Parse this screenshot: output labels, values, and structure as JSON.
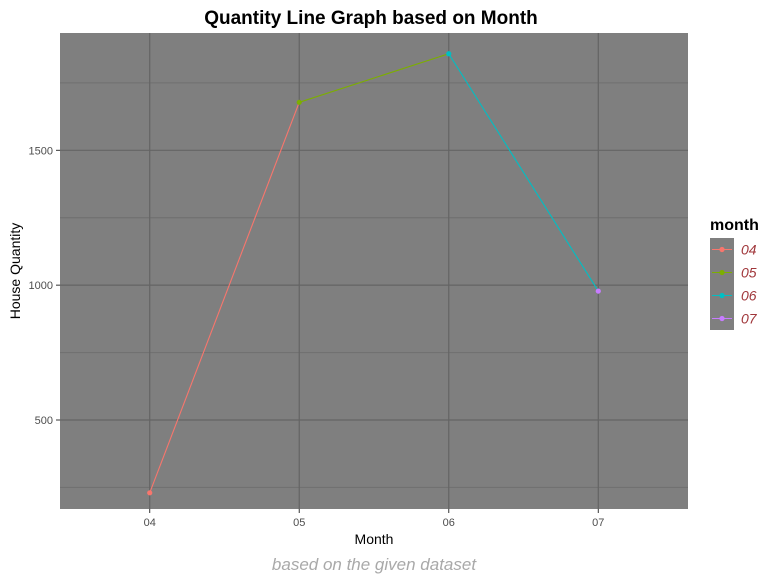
{
  "chart_data": {
    "type": "line",
    "title": "Quantity Line Graph based on Month",
    "xlabel": "Month",
    "ylabel": "House Quantity",
    "caption": "based on the given dataset",
    "categories": [
      "04",
      "05",
      "06",
      "07"
    ],
    "values": [
      230,
      1678,
      1858,
      978
    ],
    "ylim": [
      170,
      1935
    ],
    "y_ticks": [
      500,
      1000,
      1500
    ],
    "y_tick_labels": [
      "500",
      "1000",
      "1500"
    ],
    "grid": true,
    "legend": {
      "title": "month",
      "position": "right",
      "entries": [
        "04",
        "05",
        "06",
        "07"
      ]
    },
    "colors": {
      "04": "#f8766d",
      "05": "#7cae00",
      "06": "#00bfc4",
      "07": "#c77cff",
      "panel_background": "#7f7f7f",
      "grid_major": "#646464",
      "grid_minor": "#6f6f6f",
      "legend_key_background": "#7f7f7f"
    }
  }
}
